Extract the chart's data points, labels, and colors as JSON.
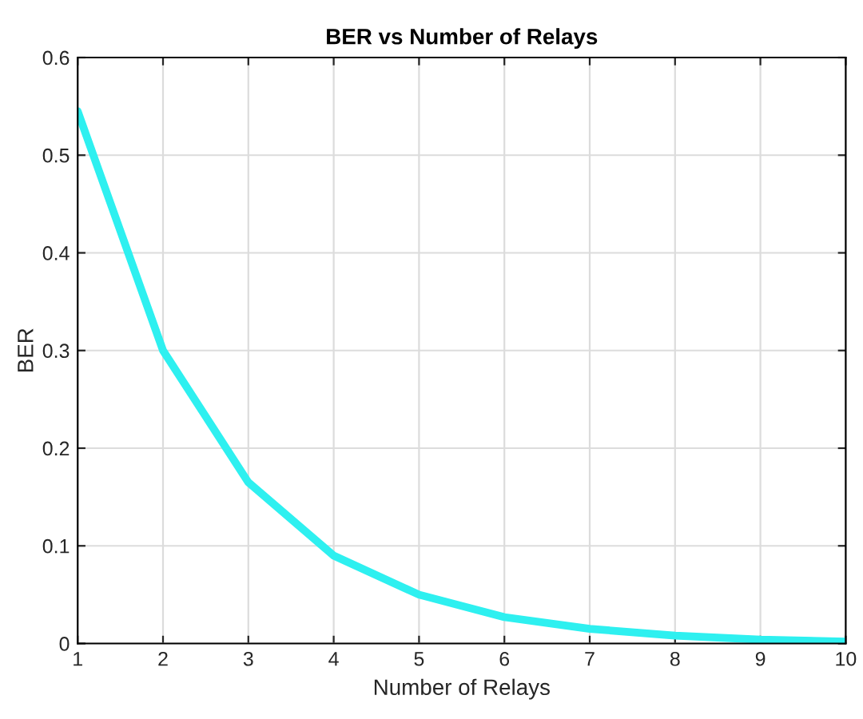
{
  "chart_data": {
    "type": "line",
    "title": "BER vs Number of Relays",
    "xlabel": "Number of Relays",
    "ylabel": "BER",
    "x": [
      1,
      2,
      3,
      4,
      5,
      6,
      7,
      8,
      9,
      10
    ],
    "series": [
      {
        "color": "#2ef0f0",
        "values": [
          0.545,
          0.3,
          0.165,
          0.09,
          0.05,
          0.027,
          0.015,
          0.008,
          0.004,
          0.002
        ]
      }
    ],
    "xlim": [
      1,
      10
    ],
    "xticks": [
      1,
      2,
      3,
      4,
      5,
      6,
      7,
      8,
      9,
      10
    ],
    "ylim": [
      0,
      0.6
    ],
    "yticks": [
      0,
      0.1,
      0.2,
      0.3,
      0.4,
      0.5,
      0.6
    ],
    "grid": true,
    "line_style": "solid",
    "legend": false
  }
}
